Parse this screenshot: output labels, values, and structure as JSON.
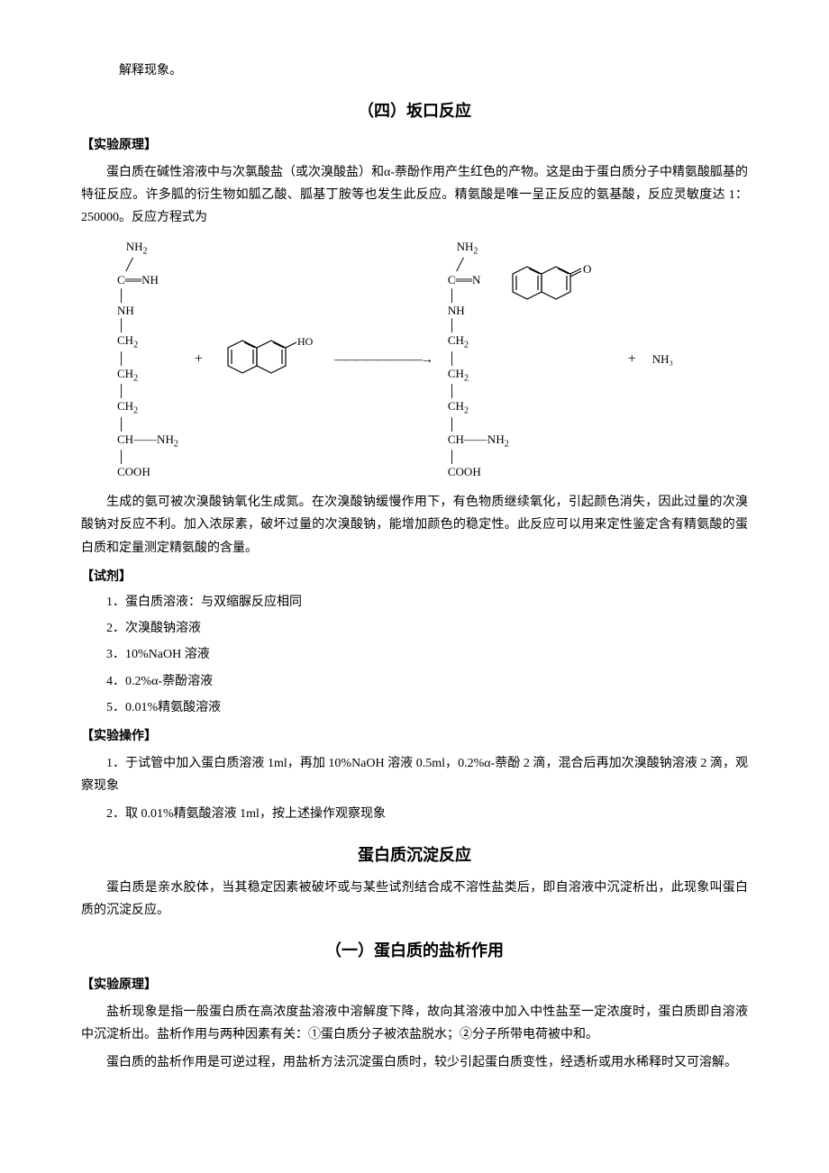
{
  "top": {
    "note": "解释现象。"
  },
  "section4": {
    "title": "（四）坂口反应",
    "principle": {
      "heading": "【实验原理】",
      "para1": "蛋白质在碱性溶液中与次氯酸盐（或次溴酸盐）和α-萘酚作用产生红色的产物。这是由于蛋白质分子中精氨酸胍基的特征反应。许多胍的衍生物如胍乙酸、胍基丁胺等也发生此反应。精氨酸是唯一呈正反应的氨基酸，反应灵敏度达 1：250000。反应方程式为",
      "para2": "生成的氨可被次溴酸钠氧化生成氮。在次溴酸钠缓慢作用下，有色物质继续氧化，引起颜色消失，因此过量的次溴酸钠对反应不利。加入浓尿素，破坏过量的次溴酸钠，能增加颜色的稳定性。此反应可以用来定性鉴定含有精氨酸的蛋白质和定量测定精氨酸的含量。"
    },
    "reagents": {
      "heading": "【试剂】",
      "items": [
        "1．蛋白质溶液：与双缩脲反应相同",
        "2．次溴酸钠溶液",
        "3．10%NaOH 溶液",
        "4．0.2%α-萘酚溶液",
        "5．0.01%精氨酸溶液"
      ]
    },
    "operation": {
      "heading": "【实验操作】",
      "items": [
        "1．于试管中加入蛋白质溶液 1ml，再加 10%NaOH 溶液 0.5ml，0.2%α-萘酚 2 滴，混合后再加次溴酸钠溶液 2 滴，观察现象",
        "2．取 0.01%精氨酸溶液 1ml，按上述操作观察现象"
      ]
    }
  },
  "precipitation": {
    "title": "蛋白质沉淀反应",
    "intro": "蛋白质是亲水胶体，当其稳定因素被破坏或与某些试剂结合成不溶性盐类后，即自溶液中沉淀析出，此现象叫蛋白质的沉淀反应。"
  },
  "section_salt": {
    "title": "（一）蛋白质的盐析作用",
    "principle": {
      "heading": "【实验原理】",
      "para1": "盐析现象是指一般蛋白质在高浓度盐溶液中溶解度下降，故向其溶液中加入中性盐至一定浓度时，蛋白质即自溶液中沉淀析出。盐析作用与两种因素有关：①蛋白质分子被浓盐脱水；②分子所带电荷被中和。",
      "para2": "蛋白质的盐析作用是可逆过程，用盐析方法沉淀蛋白质时，较少引起蛋白质变性，经透析或用水稀释时又可溶解。"
    }
  },
  "diagram": {
    "plus": "+",
    "arrow": "————————→",
    "nh3": "NH₃",
    "ho": "HO",
    "arg_lines": [
      "   NH₂",
      "   ╱",
      "C══NH",
      "│",
      "NH",
      "│",
      "CH₂",
      "│",
      "CH₂",
      "│",
      "CH₂",
      "│",
      "CH——NH₂",
      "│",
      "COOH"
    ],
    "product_lines": [
      "   NH₂",
      "   ╱",
      "C══N",
      "│",
      "NH",
      "│",
      "CH₂",
      "│",
      "CH₂",
      "│",
      "CH₂",
      "│",
      "CH——NH₂",
      "│",
      "COOH"
    ],
    "colors": {
      "text": "#000000",
      "stroke": "#000000",
      "bg": "#ffffff"
    }
  }
}
